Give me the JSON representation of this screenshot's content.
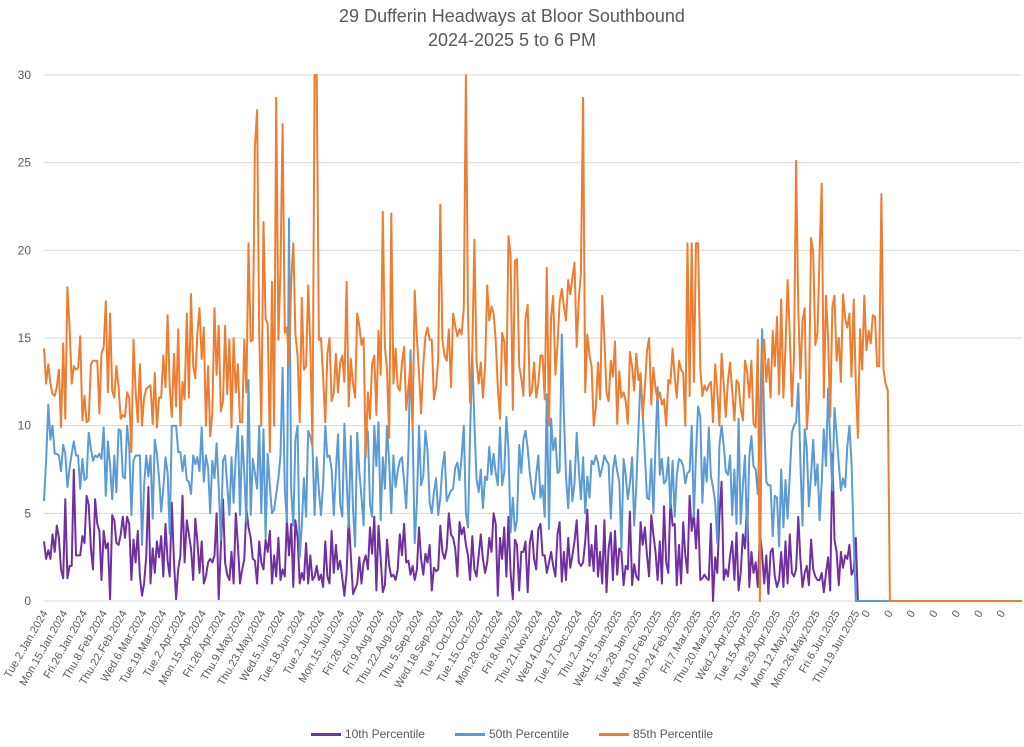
{
  "chart_data": {
    "type": "line",
    "title": "29 Dufferin Headways at Bloor Southbound",
    "subtitle": "2024-2025 5 to 6 PM",
    "xlabel": "",
    "ylabel": "",
    "ylim": [
      0,
      30
    ],
    "yticks": [
      0,
      5,
      10,
      15,
      20,
      25,
      30
    ],
    "grid": true,
    "legend_position": "bottom",
    "xtick_labels": [
      "Tue.2.Jan.2024",
      "Mon.15.Jan.2024",
      "Fri.26.Jan.2024",
      "Thu.8.Feb.2024",
      "Thu.22.Feb.2024",
      "Wed.6.Mar.2024",
      "Tue.19.Mar.2024",
      "Tue.2.Apr.2024",
      "Mon.15.Apr.2024",
      "Fri.26.Apr.2024",
      "Thu.9.May.2024",
      "Thu.23.May.2024",
      "Wed.5.Jun.2024",
      "Tue.18.Jun.2024",
      "Tue.2.Jul.2024",
      "Mon.15.Jul.2024",
      "Fri.26.Jul.2024",
      "Fri.9.Aug.2024",
      "Thu.22.Aug.2024",
      "Thu.5.Sep.2024",
      "Wed.18.Sep.2024",
      "Tue.1.Oct.2024",
      "Tue.15.Oct.2024",
      "Mon.28.Oct.2024",
      "Fri.8.Nov.2024",
      "Thu.21.Nov.2024",
      "Wed.4.Dec.2024",
      "Tue.17.Dec.2024",
      "Thu.2.Jan.2025",
      "Wed.15.Jan.2025",
      "Tue.28.Jan.2025",
      "Mon.10.Feb.2025",
      "Mon.24.Feb.2025",
      "Fri.7.Mar.2025",
      "Thu.20.Mar.2025",
      "Wed.2.Apr.2025",
      "Tue.15.Apr.2025",
      "Tue.29.Apr.2025",
      "Mon.12.May.2025",
      "Mon.26.May.2025",
      "Fri.6.Jun.2025",
      "Thu.19.Jun.2025",
      "0",
      "0",
      "0",
      "0",
      "0",
      "0",
      "0"
    ],
    "points_per_tick": 9,
    "series": [
      {
        "name": "10th Percentile",
        "color": "#7030A0",
        "values": [
          3.4,
          2.4,
          2.9,
          2.4,
          3.8,
          2.8,
          4.3,
          3.6,
          1.8,
          1.3,
          5.8,
          1.3,
          2.0,
          2.0,
          7.5,
          2.6,
          2.6,
          2.6,
          3.7,
          3.3,
          6.0,
          5.5,
          3.0,
          1.8,
          5.8,
          4.4,
          4.0,
          1.2,
          4.0,
          3.0,
          3.3,
          0.1,
          4.9,
          4.6,
          3.3,
          3.2,
          3.8,
          4.8,
          3.6,
          4.8,
          4.4,
          1.2,
          3.5,
          2.2,
          4.0,
          1.4,
          0.3,
          1.0,
          2.6,
          6.5,
          1.0,
          3.0,
          1.6,
          3.4,
          2.5,
          3.7,
          1.4,
          4.4,
          2.3,
          1.4,
          5.6,
          2.2,
          0.1,
          1.8,
          2.6,
          6.0,
          2.2,
          4.6,
          3.8,
          3.0,
          1.2,
          4.7,
          3.4,
          1.6,
          3.4,
          1.0,
          1.4,
          2.2,
          2.4,
          2.2,
          2.6,
          5.0,
          0.1,
          3.0,
          5.8,
          2.2,
          1.5,
          1.2,
          2.8,
          1.0,
          5.0,
          3.2,
          1.0,
          1.8,
          2.4,
          5.3,
          4.2,
          3.6,
          2.4,
          2.3,
          1.0,
          3.4,
          2.2,
          1.8,
          3.5,
          2.8,
          4.0,
          1.0,
          2.6,
          1.4,
          3.6,
          1.2,
          1.8,
          1.4,
          4.7,
          2.6,
          4.4,
          0.8,
          4.6,
          3.6,
          1.0,
          1.6,
          1.2,
          3.3,
          1.0,
          2.6,
          1.2,
          1.4,
          2.0,
          1.2,
          1.5,
          0.8,
          3.4,
          1.4,
          1.0,
          4.0,
          1.6,
          3.2,
          1.8,
          2.3,
          1.3,
          0.3,
          1.6,
          4.8,
          2.6,
          0.4,
          0.7,
          1.0,
          2.5,
          1.0,
          2.2,
          2.6,
          1.8,
          4.2,
          2.7,
          4.8,
          0.6,
          4.3,
          2.4,
          0.5,
          0.9,
          3.5,
          2.0,
          1.4,
          1.5,
          1.2,
          1.8,
          3.8,
          2.6,
          4.4,
          2.2,
          2.3,
          1.5,
          2.0,
          1.2,
          1.8,
          4.2,
          2.4,
          1.5,
          2.7,
          2.2,
          3.2,
          0.6,
          1.9,
          1.7,
          1.8,
          4.3,
          2.8,
          2.4,
          3.0,
          5.0,
          3.8,
          3.6,
          3.0,
          1.4,
          4.5,
          3.8,
          4.2,
          3.2,
          2.6,
          1.2,
          3.7,
          1.8,
          1.4,
          2.6,
          3.8,
          2.4,
          1.6,
          2.2,
          3.6,
          2.8,
          5.0,
          4.4,
          0.3,
          3.6,
          2.4,
          4.2,
          1.4,
          4.8,
          1.6,
          0.1,
          3.5,
          3.2,
          0.6,
          2.8,
          2.8,
          3.4,
          0.5,
          3.3,
          4.0,
          2.4,
          1.8,
          4.1,
          4.4,
          2.6,
          2.6,
          1.6,
          2.2,
          2.8,
          2.0,
          1.4,
          3.8,
          4.5,
          1.1,
          2.8,
          1.2,
          3.6,
          1.9,
          2.6,
          3.4,
          4.6,
          2.2,
          2.0,
          2.2,
          3.4,
          5.2,
          2.0,
          3.2,
          1.7,
          4.3,
          1.4,
          2.8,
          1.0,
          4.6,
          0.5,
          3.0,
          3.9,
          1.2,
          4.0,
          1.5,
          3.0,
          2.8,
          0.9,
          2.0,
          1.8,
          5.1,
          0.9,
          2.1,
          1.4,
          1.2,
          4.5,
          3.2,
          4.2,
          2.6,
          1.4,
          4.9,
          3.8,
          2.8,
          1.2,
          3.4,
          1.0,
          5.4,
          2.2,
          1.6,
          5.8,
          4.3,
          4.4,
          0.9,
          3.2,
          1.0,
          4.5,
          2.6,
          1.6,
          6.0,
          4.0,
          5.0,
          3.0,
          5.2,
          1.2,
          1.3,
          1.5,
          1.3,
          1.2,
          4.4,
          0.0,
          2.5,
          1.6,
          4.8,
          6.8,
          1.2,
          1.8,
          1.4,
          2.6,
          3.4,
          1.2,
          3.9,
          0.6,
          1.6,
          3.8,
          3.0,
          5.8,
          0.8,
          2.8,
          1.6,
          2.2,
          0.8,
          4.0,
          2.7,
          1.0,
          2.6,
          0.4,
          2.8,
          3.0,
          1.4,
          0.8,
          1.2,
          2.8,
          0.8,
          3.4,
          1.0,
          3.8,
          1.6,
          1.4,
          1.8,
          4.8,
          2.4,
          0.8,
          1.6,
          2.0,
          0.9,
          3.5,
          1.8,
          1.4,
          1.2,
          1.2,
          1.6,
          0.5,
          1.6,
          2.5,
          0.6,
          8.4,
          3.5,
          2.8,
          0.9,
          2.8,
          1.9,
          2.6,
          2.4,
          3.2,
          1.5,
          1.8,
          3.6
        ],
        "trailing_zero_count": 63
      },
      {
        "name": "50th Percentile",
        "color": "#5B9BD5",
        "values": [
          5.7,
          8.0,
          11.2,
          9.2,
          10.0,
          8.4,
          8.4,
          8.3,
          7.4,
          8.9,
          8.4,
          6.5,
          7.6,
          8.4,
          9.1,
          8.3,
          8.3,
          6.4,
          8.1,
          6.9,
          7.0,
          9.6,
          8.7,
          8.0,
          8.3,
          8.2,
          8.4,
          8.1,
          9.9,
          6.0,
          9.1,
          7.7,
          5.8,
          8.3,
          6.2,
          9.8,
          9.7,
          7.1,
          7.0,
          10.0,
          8.8,
          4.9,
          8.0,
          8.3,
          8.3,
          8.3,
          3.2,
          6.6,
          8.3,
          7.1,
          8.3,
          4.7,
          9.2,
          8.4,
          7.0,
          5.1,
          6.4,
          8.2,
          7.3,
          3.8,
          10.0,
          10.0,
          10.0,
          8.5,
          8.5,
          7.4,
          8.3,
          6.9,
          6.8,
          6.1,
          8.3,
          7.8,
          8.2,
          7.4,
          9.9,
          6.8,
          8.3,
          7.6,
          5.0,
          8.0,
          7.0,
          9.0,
          6.5,
          3.5,
          8.0,
          8.3,
          6.6,
          4.9,
          8.2,
          5.6,
          8.3,
          10.0,
          4.9,
          9.4,
          7.3,
          4.5,
          12.6,
          4.9,
          8.1,
          7.3,
          6.4,
          10.0,
          5.0,
          9.8,
          3.6,
          8.4,
          6.5,
          5.0,
          5.2,
          6.1,
          7.0,
          8.3,
          13.3,
          6.4,
          4.5,
          21.8,
          6.3,
          4.3,
          9.2,
          10.0,
          2.5,
          4.3,
          7.0,
          4.8,
          9.7,
          9.4,
          8.8,
          4.9,
          8.2,
          6.3,
          4.9,
          6.6,
          10.0,
          8.2,
          8.3,
          7.5,
          4.9,
          7.4,
          9.5,
          5.5,
          4.8,
          10.1,
          6.9,
          4.2,
          9.4,
          5.3,
          3.1,
          9.6,
          7.4,
          5.9,
          4.3,
          10.1,
          9.6,
          5.5,
          4.8,
          10.0,
          7.7,
          10.2,
          4.6,
          8.2,
          6.4,
          10.0,
          7.9,
          5.0,
          8.3,
          6.5,
          7.4,
          8.0,
          8.2,
          6.8,
          5.3,
          8.5,
          14.3,
          9.9,
          3.3,
          5.6,
          10.0,
          6.6,
          7.1,
          9.7,
          8.6,
          5.6,
          5.0,
          6.2,
          7.0,
          4.9,
          5.9,
          7.6,
          8.5,
          5.7,
          6.0,
          6.3,
          6.4,
          7.6,
          7.9,
          6.9,
          8.2,
          10.0,
          5.0,
          4.2,
          9.6,
          14.0,
          10.2,
          7.0,
          6.2,
          7.5,
          5.3,
          7.1,
          6.9,
          8.8,
          7.2,
          8.4,
          7.3,
          6.6,
          9.9,
          6.6,
          7.3,
          10.5,
          8.6,
          3.9,
          5.9,
          4.0,
          4.6,
          8.9,
          7.3,
          9.2,
          9.7,
          8.7,
          7.3,
          6.3,
          5.8,
          7.2,
          8.3,
          5.9,
          6.6,
          4.8,
          11.8,
          4.1,
          10.4,
          8.6,
          9.3,
          7.3,
          7.4,
          15.2,
          10.6,
          7.1,
          5.3,
          8.0,
          5.7,
          6.7,
          9.6,
          7.5,
          5.8,
          8.2,
          5.0,
          7.1,
          5.9,
          8.0,
          7.8,
          8.3,
          7.9,
          7.1,
          7.6,
          8.3,
          8.0,
          7.8,
          4.7,
          7.4,
          8.3,
          7.4,
          6.8,
          3.0,
          8.1,
          7.2,
          5.8,
          6.7,
          8.2,
          4.3,
          6.6,
          9.8,
          12.9,
          10.7,
          8.3,
          5.9,
          5.8,
          8.1,
          5.0,
          8.9,
          12.2,
          7.2,
          8.1,
          6.7,
          6.9,
          8.2,
          5.3,
          8.0,
          4.8,
          7.2,
          8.1,
          8.0,
          7.7,
          6.7,
          7.3,
          7.4,
          10.0,
          4.8,
          8.4,
          11.1,
          10.5,
          5.6,
          8.2,
          6.8,
          9.9,
          7.1,
          6.5,
          5.6,
          3.3,
          8.9,
          10.0,
          8.9,
          7.4,
          7.2,
          8.3,
          4.9,
          7.5,
          4.4,
          10.4,
          4.4,
          6.6,
          8.3,
          3.4,
          8.2,
          9.4,
          7.7,
          7.5,
          6.1,
          9.8,
          15.5,
          10.2,
          6.8,
          6.6,
          6.6,
          3.7,
          6.0,
          5.9,
          3.1,
          7.5,
          4.2,
          6.9,
          4.7,
          7.2,
          9.6,
          10.0,
          10.2,
          12.4,
          7.9,
          4.3,
          9.8,
          8.7,
          5.4,
          7.2,
          9.2,
          6.6,
          7.8,
          4.6,
          6.8,
          9.8,
          7.7,
          12.1,
          9.1,
          6.3,
          11.0,
          9.5,
          7.8,
          6.3,
          7.0,
          6.5,
          8.8,
          10.0,
          7.9,
          3.5
        ],
        "trailing_zero_count": 63
      },
      {
        "name": "85th Percentile",
        "color": "#ED7D31",
        "values": [
          14.4,
          12.4,
          13.5,
          12.4,
          11.8,
          11.7,
          12.2,
          13.2,
          9.9,
          14.7,
          10.4,
          17.9,
          15.6,
          12.4,
          13.4,
          13.2,
          13.3,
          15.1,
          10.3,
          11.7,
          10.2,
          10.3,
          13.5,
          13.7,
          13.7,
          13.7,
          10.7,
          14.1,
          14.5,
          17.1,
          11.9,
          16.4,
          12.0,
          11.6,
          13.4,
          12.2,
          10.4,
          10.6,
          10.5,
          11.9,
          11.6,
          8.5,
          14.9,
          12.0,
          10.2,
          13.5,
          10.0,
          11.6,
          12.1,
          12.2,
          12.3,
          10.1,
          13.0,
          9.9,
          11.6,
          11.6,
          14.0,
          12.2,
          16.3,
          12.2,
          10.5,
          14.1,
          11.1,
          15.5,
          10.0,
          12.5,
          11.5,
          16.4,
          11.6,
          17.5,
          13.4,
          12.7,
          15.3,
          16.7,
          13.8,
          15.6,
          10.0,
          13.4,
          9.4,
          10.7,
          16.7,
          12.9,
          15.7,
          10.8,
          11.4,
          15.7,
          11.8,
          14.9,
          9.9,
          15.0,
          11.9,
          13.5,
          10.2,
          10.2,
          14.9,
          11.9,
          20.4,
          14.8,
          14.9,
          25.9,
          28.0,
          15.4,
          10.0,
          21.6,
          16.1,
          15.8,
          8.5,
          18.2,
          10.0,
          28.7,
          14.9,
          19.0,
          27.2,
          15.3,
          15.6,
          13.5,
          18.2,
          20.4,
          15.2,
          14.0,
          10.2,
          17.3,
          13.2,
          13.4,
          18.0,
          14.5,
          8.9,
          30.0,
          30.0,
          14.9,
          15.0,
          12.8,
          10.2,
          14.1,
          15.0,
          11.4,
          11.9,
          14.1,
          11.9,
          13.6,
          14.0,
          12.5,
          18.2,
          11.1,
          13.8,
          12.4,
          11.6,
          16.4,
          15.7,
          14.6,
          15.0,
          8.2,
          11.9,
          10.4,
          13.5,
          14.0,
          10.6,
          15.4,
          12.9,
          22.2,
          14.5,
          13.2,
          9.3,
          22.1,
          12.4,
          14.4,
          12.2,
          12.0,
          13.6,
          14.5,
          10.9,
          12.2,
          13.5,
          9.8,
          17.7,
          15.0,
          13.0,
          10.7,
          13.5,
          15.1,
          15.6,
          14.9,
          14.9,
          11.5,
          12.2,
          13.8,
          22.6,
          14.9,
          14.0,
          13.7,
          15.5,
          12.2,
          16.4,
          15.7,
          15.1,
          15.5,
          15.2,
          16.7,
          30.0,
          16.4,
          11.3,
          14.3,
          20.6,
          13.7,
          12.4,
          13.6,
          11.6,
          13.4,
          18.0,
          16.0,
          16.8,
          16.4,
          14.9,
          12.2,
          10.4,
          15.3,
          14.8,
          12.3,
          20.8,
          19.7,
          10.9,
          19.4,
          19.5,
          13.4,
          12.7,
          11.7,
          16.1,
          16.9,
          11.7,
          12.0,
          13.6,
          11.6,
          12.4,
          14.0,
          14.0,
          11.5,
          19.0,
          10.0,
          16.2,
          17.4,
          12.9,
          14.6,
          17.0,
          17.8,
          16.8,
          16.0,
          18.3,
          17.5,
          18.4,
          19.3,
          14.5,
          17.2,
          18.7,
          28.7,
          11.9,
          15.2,
          14.0,
          13.4,
          10.0,
          11.1,
          13.6,
          11.5,
          17.4,
          14.9,
          11.9,
          11.4,
          13.7,
          12.8,
          14.8,
          10.1,
          13.1,
          11.6,
          11.9,
          11.4,
          10.1,
          14.2,
          13.4,
          12.0,
          14.1,
          12.6,
          13.0,
          10.5,
          12.2,
          14.3,
          15.0,
          11.2,
          13.3,
          12.1,
          11.5,
          11.9,
          11.2,
          11.5,
          10.0,
          12.6,
          12.4,
          14.4,
          12.8,
          11.6,
          13.7,
          13.2,
          13.0,
          10.0,
          20.4,
          11.7,
          20.4,
          12.5,
          20.4,
          20.4,
          13.2,
          11.7,
          12.3,
          12.0,
          12.3,
          12.5,
          10.2,
          13.5,
          12.0,
          10.0,
          14.1,
          12.4,
          10.5,
          12.6,
          13.6,
          12.0,
          10.3,
          12.6,
          12.4,
          11.0,
          10.3,
          13.7,
          13.1,
          11.6,
          13.7,
          10.1,
          9.9,
          14.9,
          0.0,
          13.9,
          14.9,
          12.5,
          13.8,
          11.6,
          15.4,
          13.4,
          16.2,
          11.8,
          17.2,
          11.6,
          14.5,
          18.3,
          15.2,
          11.1,
          13.9,
          25.1,
          16.6,
          12.7,
          16.0,
          16.7,
          9.8,
          11.6,
          20.7,
          19.9,
          14.6,
          15.3,
          19.8,
          23.8,
          11.6,
          17.4,
          15.0,
          10.5,
          16.8,
          17.4,
          13.7,
          15.0,
          12.5,
          17.5,
          16.1,
          15.6,
          16.4,
          12.8,
          17.2,
          12.4,
          9.3,
          15.5,
          13.2,
          17.4,
          14.3,
          15.4,
          14.7,
          16.3,
          16.2,
          13.4,
          13.4,
          23.2,
          13.2,
          12.4,
          12.0
        ],
        "trailing_zero_count": 63
      }
    ]
  }
}
